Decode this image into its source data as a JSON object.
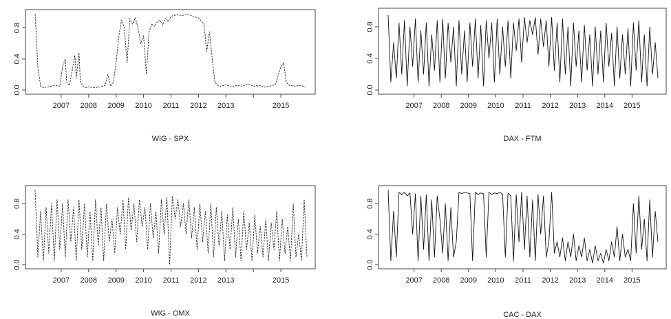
{
  "chart_data": [
    {
      "type": "line",
      "title": "WIG - SPX",
      "line_style": "dashed",
      "color": "#222222",
      "xlim": [
        2006.0,
        2016.0
      ],
      "ylim": [
        0.0,
        1.0
      ],
      "x_ticks": [
        2007,
        2008,
        2009,
        2010,
        2011,
        2012,
        2013,
        2014,
        2015
      ],
      "x_tick_labels": [
        "2007",
        "2008",
        "2009",
        "2010",
        "2011",
        "2012",
        "2013",
        "",
        "2015"
      ],
      "y_ticks": [
        0.0,
        0.4,
        0.8
      ],
      "y_tick_labels": [
        "0.0",
        "0.4",
        "0.8"
      ],
      "series": [
        {
          "x": [
            2006.05,
            2006.15,
            2006.25,
            2006.35,
            2006.5,
            2006.65,
            2006.8,
            2006.95,
            2007.05,
            2007.15,
            2007.2,
            2007.3,
            2007.4,
            2007.5,
            2007.55,
            2007.65,
            2007.7,
            2007.8,
            2007.9,
            2008.0,
            2008.2,
            2008.4,
            2008.6,
            2008.7,
            2008.8,
            2008.9,
            2009.0,
            2009.1,
            2009.2,
            2009.3,
            2009.4,
            2009.5,
            2009.6,
            2009.7,
            2009.8,
            2009.9,
            2010.0,
            2010.1,
            2010.2,
            2010.3,
            2010.4,
            2010.5,
            2010.6,
            2010.7,
            2010.8,
            2010.9,
            2011.0,
            2011.2,
            2011.4,
            2011.6,
            2011.8,
            2012.0,
            2012.2,
            2012.3,
            2012.4,
            2012.5,
            2012.6,
            2012.7,
            2012.8,
            2013.0,
            2013.2,
            2013.4,
            2013.6,
            2013.8,
            2014.0,
            2014.2,
            2014.4,
            2014.6,
            2014.8,
            2015.0,
            2015.1,
            2015.2,
            2015.3,
            2015.5,
            2015.7,
            2015.9
          ],
          "y": [
            0.98,
            0.3,
            0.05,
            0.03,
            0.04,
            0.05,
            0.06,
            0.05,
            0.3,
            0.4,
            0.1,
            0.06,
            0.25,
            0.45,
            0.15,
            0.48,
            0.1,
            0.05,
            0.03,
            0.04,
            0.03,
            0.04,
            0.06,
            0.2,
            0.05,
            0.1,
            0.35,
            0.7,
            0.9,
            0.8,
            0.35,
            0.92,
            0.85,
            0.93,
            0.8,
            0.6,
            0.7,
            0.2,
            0.75,
            0.85,
            0.82,
            0.88,
            0.9,
            0.84,
            0.92,
            0.88,
            0.95,
            0.97,
            0.96,
            0.98,
            0.95,
            0.93,
            0.85,
            0.5,
            0.75,
            0.4,
            0.1,
            0.06,
            0.05,
            0.07,
            0.04,
            0.06,
            0.05,
            0.08,
            0.05,
            0.06,
            0.04,
            0.05,
            0.07,
            0.3,
            0.35,
            0.1,
            0.06,
            0.05,
            0.06,
            0.04
          ]
        }
      ]
    },
    {
      "type": "line",
      "title": "DAX - FTM",
      "line_style": "solid",
      "color": "#111111",
      "xlim": [
        2006.0,
        2016.0
      ],
      "ylim": [
        0.0,
        1.0
      ],
      "x_ticks": [
        2007,
        2008,
        2009,
        2010,
        2011,
        2012,
        2013,
        2014,
        2015
      ],
      "x_tick_labels": [
        "2007",
        "2008",
        "2009",
        "2010",
        "2011",
        "2012",
        "2013",
        "2014",
        "2015"
      ],
      "y_ticks": [
        0.0,
        0.4,
        0.8
      ],
      "y_tick_labels": [
        "0.0",
        "0.4",
        "0.8"
      ],
      "series": [
        {
          "x": [
            2006.05,
            2006.15,
            2006.25,
            2006.35,
            2006.45,
            2006.55,
            2006.65,
            2006.75,
            2006.85,
            2006.95,
            2007.05,
            2007.15,
            2007.25,
            2007.35,
            2007.45,
            2007.55,
            2007.65,
            2007.75,
            2007.85,
            2007.95,
            2008.05,
            2008.15,
            2008.25,
            2008.35,
            2008.45,
            2008.55,
            2008.65,
            2008.75,
            2008.85,
            2008.95,
            2009.05,
            2009.15,
            2009.25,
            2009.35,
            2009.45,
            2009.55,
            2009.65,
            2009.75,
            2009.85,
            2009.95,
            2010.05,
            2010.15,
            2010.25,
            2010.35,
            2010.45,
            2010.55,
            2010.65,
            2010.75,
            2010.85,
            2010.95,
            2011.05,
            2011.15,
            2011.25,
            2011.35,
            2011.45,
            2011.55,
            2011.65,
            2011.75,
            2011.85,
            2011.95,
            2012.05,
            2012.15,
            2012.25,
            2012.35,
            2012.45,
            2012.55,
            2012.65,
            2012.75,
            2012.85,
            2012.95,
            2013.05,
            2013.15,
            2013.25,
            2013.35,
            2013.45,
            2013.55,
            2013.65,
            2013.75,
            2013.85,
            2013.95,
            2014.05,
            2014.15,
            2014.25,
            2014.35,
            2014.45,
            2014.55,
            2014.65,
            2014.75,
            2014.85,
            2014.95,
            2015.05,
            2015.15,
            2015.25,
            2015.35,
            2015.45,
            2015.55,
            2015.65,
            2015.75,
            2015.85,
            2015.95
          ],
          "y": [
            0.95,
            0.1,
            0.6,
            0.15,
            0.85,
            0.2,
            0.88,
            0.05,
            0.8,
            0.3,
            0.9,
            0.1,
            0.75,
            0.2,
            0.85,
            0.05,
            0.7,
            0.25,
            0.88,
            0.1,
            0.9,
            0.15,
            0.85,
            0.35,
            0.8,
            0.05,
            0.88,
            0.2,
            0.75,
            0.1,
            0.85,
            0.3,
            0.9,
            0.15,
            0.82,
            0.05,
            0.88,
            0.4,
            0.85,
            0.1,
            0.9,
            0.2,
            0.8,
            0.3,
            0.88,
            0.15,
            0.85,
            0.5,
            0.9,
            0.35,
            0.92,
            0.6,
            0.88,
            0.7,
            0.92,
            0.45,
            0.9,
            0.55,
            0.88,
            0.3,
            0.92,
            0.25,
            0.85,
            0.1,
            0.9,
            0.2,
            0.8,
            0.05,
            0.85,
            0.3,
            0.75,
            0.1,
            0.82,
            0.25,
            0.7,
            0.05,
            0.8,
            0.2,
            0.75,
            0.1,
            0.85,
            0.3,
            0.72,
            0.05,
            0.8,
            0.15,
            0.7,
            0.2,
            0.78,
            0.05,
            0.85,
            0.25,
            0.88,
            0.1,
            0.7,
            0.05,
            0.8,
            0.2,
            0.6,
            0.15
          ]
        }
      ]
    },
    {
      "type": "line",
      "title": "WIG - OMX",
      "line_style": "dashed",
      "color": "#222222",
      "xlim": [
        2006.0,
        2016.0
      ],
      "ylim": [
        0.0,
        1.0
      ],
      "x_ticks": [
        2007,
        2008,
        2009,
        2010,
        2011,
        2012,
        2013,
        2014,
        2015
      ],
      "x_tick_labels": [
        "2007",
        "2008",
        "2009",
        "2010",
        "2011",
        "2012",
        "2013",
        "",
        "2015"
      ],
      "y_ticks": [
        0.0,
        0.4,
        0.8
      ],
      "y_tick_labels": [
        "0.0",
        "0.4",
        "0.8"
      ],
      "series": [
        {
          "x": [
            2006.05,
            2006.15,
            2006.25,
            2006.35,
            2006.45,
            2006.55,
            2006.65,
            2006.75,
            2006.85,
            2006.95,
            2007.05,
            2007.15,
            2007.25,
            2007.35,
            2007.45,
            2007.55,
            2007.65,
            2007.75,
            2007.85,
            2007.95,
            2008.05,
            2008.15,
            2008.25,
            2008.35,
            2008.45,
            2008.55,
            2008.65,
            2008.75,
            2008.85,
            2008.95,
            2009.05,
            2009.15,
            2009.25,
            2009.35,
            2009.45,
            2009.55,
            2009.65,
            2009.75,
            2009.85,
            2009.95,
            2010.05,
            2010.15,
            2010.25,
            2010.35,
            2010.45,
            2010.55,
            2010.65,
            2010.75,
            2010.85,
            2010.95,
            2011.05,
            2011.15,
            2011.25,
            2011.35,
            2011.45,
            2011.55,
            2011.65,
            2011.75,
            2011.85,
            2011.95,
            2012.05,
            2012.15,
            2012.25,
            2012.35,
            2012.45,
            2012.55,
            2012.65,
            2012.75,
            2012.85,
            2012.95,
            2013.05,
            2013.15,
            2013.25,
            2013.35,
            2013.45,
            2013.55,
            2013.65,
            2013.75,
            2013.85,
            2013.95,
            2014.05,
            2014.15,
            2014.25,
            2014.35,
            2014.45,
            2014.55,
            2014.65,
            2014.75,
            2014.85,
            2014.95,
            2015.05,
            2015.15,
            2015.25,
            2015.35,
            2015.45,
            2015.55,
            2015.65,
            2015.75,
            2015.85,
            2015.95
          ],
          "y": [
            0.98,
            0.1,
            0.7,
            0.05,
            0.75,
            0.15,
            0.8,
            0.05,
            0.85,
            0.2,
            0.8,
            0.1,
            0.85,
            0.3,
            0.75,
            0.05,
            0.85,
            0.2,
            0.8,
            0.1,
            0.7,
            0.05,
            0.85,
            0.25,
            0.75,
            0.05,
            0.8,
            0.3,
            0.6,
            0.15,
            0.75,
            0.4,
            0.85,
            0.2,
            0.88,
            0.45,
            0.8,
            0.3,
            0.85,
            0.5,
            0.75,
            0.2,
            0.8,
            0.35,
            0.7,
            0.15,
            0.85,
            0.4,
            0.88,
            0.0,
            0.9,
            0.6,
            0.85,
            0.5,
            0.8,
            0.4,
            0.85,
            0.35,
            0.75,
            0.2,
            0.8,
            0.3,
            0.7,
            0.15,
            0.8,
            0.1,
            0.75,
            0.25,
            0.7,
            0.05,
            0.65,
            0.2,
            0.75,
            0.1,
            0.6,
            0.05,
            0.7,
            0.2,
            0.55,
            0.05,
            0.65,
            0.15,
            0.5,
            0.1,
            0.6,
            0.05,
            0.55,
            0.2,
            0.7,
            0.05,
            0.6,
            0.15,
            0.5,
            0.05,
            0.8,
            0.1,
            0.4,
            0.05,
            0.85,
            0.1
          ]
        }
      ]
    },
    {
      "type": "line",
      "title": "CAC - DAX",
      "line_style": "solid",
      "color": "#111111",
      "xlim": [
        2006.0,
        2016.0
      ],
      "ylim": [
        0.0,
        1.0
      ],
      "x_ticks": [
        2007,
        2008,
        2009,
        2010,
        2011,
        2012,
        2013,
        2014,
        2015
      ],
      "x_tick_labels": [
        "2007",
        "2008",
        "2009",
        "2010",
        "2011",
        "2012",
        "2013",
        "2014",
        "2015"
      ],
      "y_ticks": [
        0.0,
        0.4,
        0.8
      ],
      "y_tick_labels": [
        "0.0",
        "0.4",
        "0.8"
      ],
      "series": [
        {
          "x": [
            2006.05,
            2006.15,
            2006.25,
            2006.35,
            2006.45,
            2006.55,
            2006.65,
            2006.75,
            2006.85,
            2006.95,
            2007.05,
            2007.15,
            2007.25,
            2007.35,
            2007.45,
            2007.55,
            2007.65,
            2007.75,
            2007.85,
            2007.95,
            2008.05,
            2008.15,
            2008.25,
            2008.35,
            2008.45,
            2008.55,
            2008.65,
            2008.75,
            2008.85,
            2008.95,
            2009.05,
            2009.15,
            2009.25,
            2009.35,
            2009.45,
            2009.55,
            2009.65,
            2009.75,
            2009.85,
            2009.95,
            2010.05,
            2010.15,
            2010.25,
            2010.35,
            2010.45,
            2010.55,
            2010.65,
            2010.75,
            2010.85,
            2010.95,
            2011.05,
            2011.15,
            2011.25,
            2011.35,
            2011.45,
            2011.55,
            2011.65,
            2011.75,
            2011.85,
            2011.95,
            2012.05,
            2012.15,
            2012.25,
            2012.35,
            2012.45,
            2012.55,
            2012.65,
            2012.75,
            2012.85,
            2012.95,
            2013.05,
            2013.15,
            2013.25,
            2013.35,
            2013.45,
            2013.55,
            2013.65,
            2013.75,
            2013.85,
            2013.95,
            2014.05,
            2014.15,
            2014.25,
            2014.35,
            2014.45,
            2014.55,
            2014.65,
            2014.75,
            2014.85,
            2014.95,
            2015.05,
            2015.15,
            2015.25,
            2015.35,
            2015.45,
            2015.55,
            2015.65,
            2015.75,
            2015.85,
            2015.95
          ],
          "y": [
            0.98,
            0.05,
            0.7,
            0.1,
            0.95,
            0.92,
            0.95,
            0.9,
            0.94,
            0.4,
            0.93,
            0.05,
            0.9,
            0.2,
            0.92,
            0.05,
            0.85,
            0.1,
            0.9,
            0.6,
            0.15,
            0.8,
            0.05,
            0.75,
            0.1,
            0.3,
            0.95,
            0.93,
            0.95,
            0.94,
            0.93,
            0.05,
            0.95,
            0.92,
            0.94,
            0.93,
            0.1,
            0.95,
            0.92,
            0.94,
            0.93,
            0.95,
            0.92,
            0.1,
            0.94,
            0.9,
            0.05,
            0.92,
            0.3,
            0.95,
            0.2,
            0.9,
            0.1,
            0.85,
            0.05,
            0.92,
            0.4,
            0.9,
            0.1,
            0.3,
            0.95,
            0.15,
            0.3,
            0.1,
            0.35,
            0.05,
            0.3,
            0.1,
            0.4,
            0.05,
            0.25,
            0.1,
            0.35,
            0.05,
            0.2,
            0.02,
            0.25,
            0.05,
            0.15,
            0.02,
            0.2,
            0.05,
            0.3,
            0.1,
            0.5,
            0.05,
            0.4,
            0.1,
            0.2,
            0.05,
            0.8,
            0.15,
            0.9,
            0.2,
            0.6,
            0.05,
            0.85,
            0.1,
            0.7,
            0.3
          ]
        }
      ]
    }
  ]
}
